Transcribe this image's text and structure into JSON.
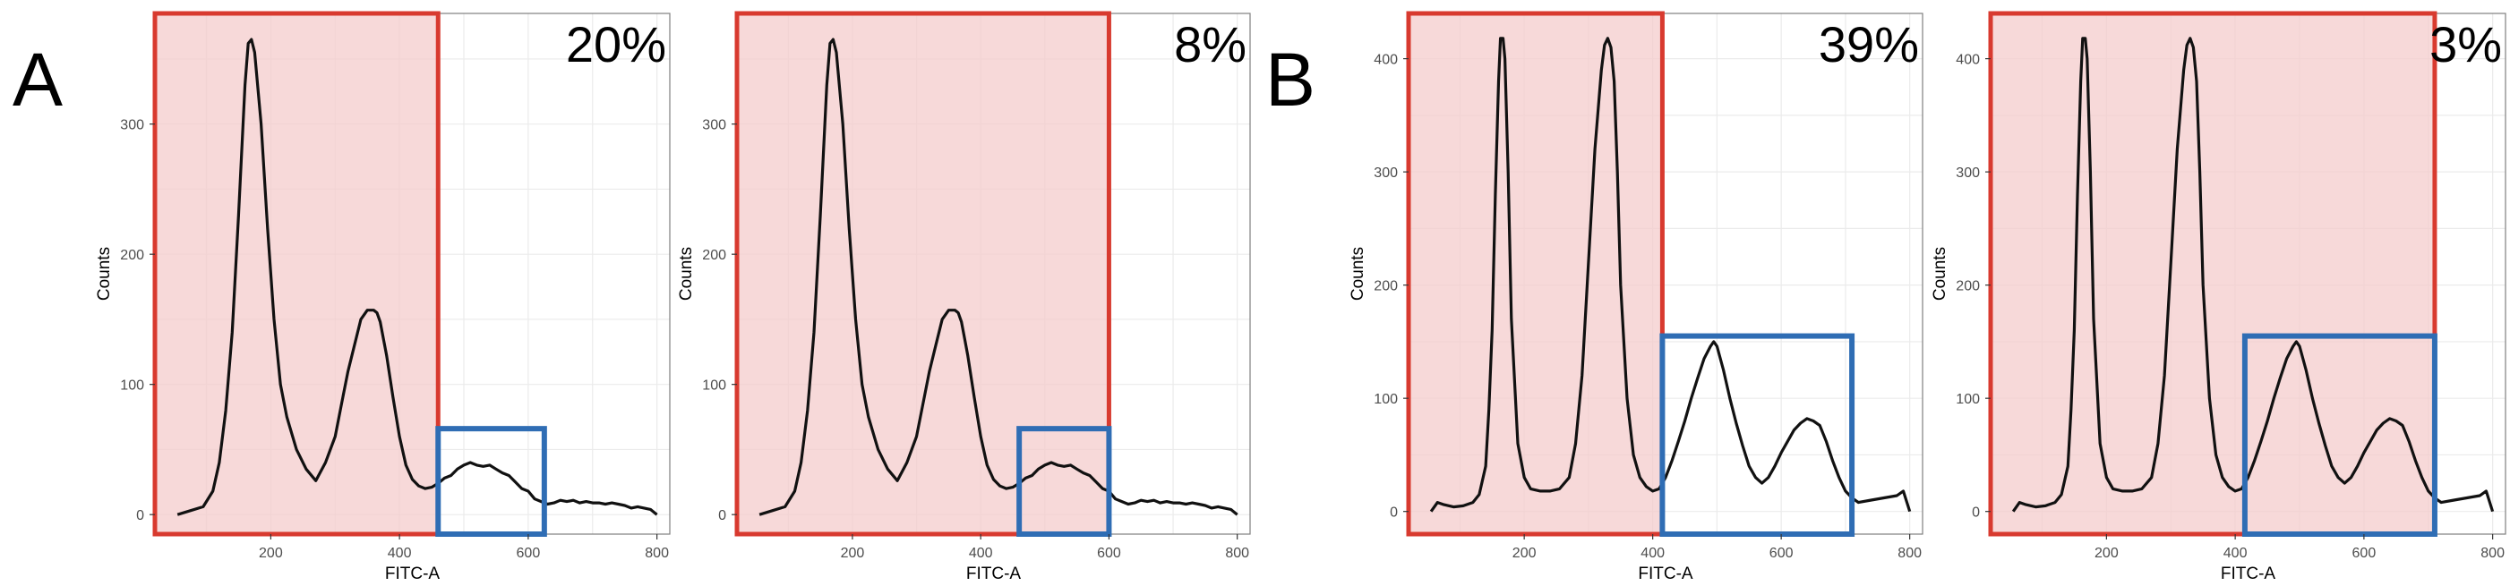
{
  "panel_labels": [
    "A",
    "B"
  ],
  "chart_data": [
    {
      "type": "line",
      "panel": "A",
      "xlabel": "FITC-A",
      "ylabel": "Counts",
      "xlim": [
        20,
        820
      ],
      "ylim": [
        -15,
        385
      ],
      "xticks": [
        200,
        400,
        600,
        800
      ],
      "yticks": [
        0,
        100,
        200,
        300
      ],
      "grid": true,
      "annotation": "20%",
      "x": [
        55,
        75,
        95,
        110,
        120,
        130,
        140,
        150,
        160,
        165,
        170,
        175,
        185,
        195,
        205,
        215,
        225,
        240,
        255,
        270,
        285,
        300,
        310,
        320,
        330,
        340,
        350,
        355,
        360,
        365,
        370,
        375,
        380,
        390,
        400,
        410,
        420,
        430,
        440,
        450,
        460,
        470,
        480,
        490,
        500,
        510,
        520,
        530,
        540,
        550,
        560,
        570,
        580,
        590,
        600,
        610,
        620,
        630,
        640,
        650,
        660,
        670,
        680,
        690,
        700,
        710,
        720,
        730,
        740,
        750,
        760,
        770,
        780,
        790,
        800
      ],
      "y": [
        0,
        3,
        6,
        18,
        40,
        80,
        140,
        230,
        330,
        362,
        365,
        355,
        300,
        220,
        150,
        100,
        75,
        50,
        35,
        26,
        40,
        60,
        85,
        110,
        130,
        150,
        157,
        157,
        157,
        155,
        148,
        135,
        122,
        90,
        60,
        38,
        27,
        22,
        20,
        21,
        24,
        28,
        30,
        35,
        38,
        40,
        38,
        37,
        38,
        35,
        32,
        30,
        25,
        20,
        18,
        12,
        10,
        8,
        9,
        11,
        10,
        11,
        9,
        10,
        9,
        9,
        8,
        9,
        8,
        7,
        5,
        6,
        5,
        4,
        0
      ],
      "gates": [
        {
          "color": "red",
          "x": [
            20,
            460
          ],
          "y": [
            -15,
            385
          ]
        },
        {
          "color": "blue",
          "x": [
            460,
            625
          ],
          "y": [
            -15,
            66
          ]
        }
      ]
    },
    {
      "type": "line",
      "panel": "A",
      "xlabel": "FITC-A",
      "ylabel": "Counts",
      "xlim": [
        20,
        820
      ],
      "ylim": [
        -15,
        385
      ],
      "xticks": [
        200,
        400,
        600,
        800
      ],
      "yticks": [
        0,
        100,
        200,
        300
      ],
      "grid": true,
      "annotation": "8%",
      "x": [
        55,
        75,
        95,
        110,
        120,
        130,
        140,
        150,
        160,
        165,
        170,
        175,
        185,
        195,
        205,
        215,
        225,
        240,
        255,
        270,
        285,
        300,
        310,
        320,
        330,
        340,
        350,
        355,
        360,
        365,
        370,
        375,
        380,
        390,
        400,
        410,
        420,
        430,
        440,
        450,
        460,
        470,
        480,
        490,
        500,
        510,
        520,
        530,
        540,
        550,
        560,
        570,
        580,
        590,
        600,
        610,
        620,
        630,
        640,
        650,
        660,
        670,
        680,
        690,
        700,
        710,
        720,
        730,
        740,
        750,
        760,
        770,
        780,
        790,
        800
      ],
      "y": [
        0,
        3,
        6,
        18,
        40,
        80,
        140,
        230,
        330,
        362,
        365,
        355,
        300,
        220,
        150,
        100,
        75,
        50,
        35,
        26,
        40,
        60,
        85,
        110,
        130,
        150,
        157,
        157,
        157,
        155,
        148,
        135,
        122,
        90,
        60,
        38,
        27,
        22,
        20,
        21,
        24,
        28,
        30,
        35,
        38,
        40,
        38,
        37,
        38,
        35,
        32,
        30,
        25,
        20,
        18,
        12,
        10,
        8,
        9,
        11,
        10,
        11,
        9,
        10,
        9,
        9,
        8,
        9,
        8,
        7,
        5,
        6,
        5,
        4,
        0
      ],
      "gates": [
        {
          "color": "red",
          "x": [
            20,
            600
          ],
          "y": [
            -15,
            385
          ]
        },
        {
          "color": "blue",
          "x": [
            460,
            600
          ],
          "y": [
            -15,
            66
          ]
        }
      ]
    },
    {
      "type": "line",
      "panel": "B",
      "xlabel": "FITC-A",
      "ylabel": "Counts",
      "xlim": [
        20,
        820
      ],
      "ylim": [
        -20,
        440
      ],
      "xticks": [
        200,
        400,
        600,
        800
      ],
      "yticks": [
        0,
        100,
        200,
        300,
        400
      ],
      "grid": true,
      "annotation": "39%",
      "x": [
        55,
        65,
        75,
        90,
        105,
        120,
        130,
        140,
        145,
        150,
        155,
        160,
        163,
        167,
        170,
        175,
        180,
        190,
        200,
        210,
        225,
        240,
        255,
        270,
        280,
        290,
        300,
        310,
        320,
        325,
        330,
        335,
        340,
        345,
        350,
        360,
        370,
        380,
        390,
        400,
        410,
        420,
        430,
        440,
        450,
        460,
        470,
        480,
        490,
        495,
        500,
        510,
        520,
        530,
        540,
        550,
        560,
        570,
        580,
        590,
        600,
        610,
        620,
        630,
        640,
        650,
        660,
        670,
        680,
        690,
        700,
        710,
        720,
        740,
        760,
        780,
        790,
        800
      ],
      "y": [
        0,
        8,
        6,
        4,
        5,
        8,
        15,
        40,
        90,
        160,
        280,
        380,
        418,
        418,
        400,
        300,
        170,
        60,
        30,
        20,
        18,
        18,
        20,
        30,
        60,
        120,
        220,
        320,
        390,
        412,
        418,
        410,
        380,
        300,
        200,
        100,
        50,
        30,
        22,
        18,
        20,
        30,
        45,
        62,
        80,
        100,
        118,
        135,
        146,
        150,
        146,
        125,
        100,
        78,
        58,
        40,
        30,
        25,
        30,
        40,
        52,
        62,
        72,
        78,
        82,
        80,
        76,
        62,
        45,
        30,
        18,
        12,
        8,
        10,
        12,
        14,
        18,
        0
      ],
      "gates": [
        {
          "color": "red",
          "x": [
            20,
            415
          ],
          "y": [
            -20,
            440
          ]
        },
        {
          "color": "blue",
          "x": [
            415,
            710
          ],
          "y": [
            -20,
            155
          ]
        }
      ]
    },
    {
      "type": "line",
      "panel": "B",
      "xlabel": "FITC-A",
      "ylabel": "Counts",
      "xlim": [
        20,
        820
      ],
      "ylim": [
        -20,
        440
      ],
      "xticks": [
        200,
        400,
        600,
        800
      ],
      "yticks": [
        0,
        100,
        200,
        300,
        400
      ],
      "grid": true,
      "annotation": "3%",
      "x": [
        55,
        65,
        75,
        90,
        105,
        120,
        130,
        140,
        145,
        150,
        155,
        160,
        163,
        167,
        170,
        175,
        180,
        190,
        200,
        210,
        225,
        240,
        255,
        270,
        280,
        290,
        300,
        310,
        320,
        325,
        330,
        335,
        340,
        345,
        350,
        360,
        370,
        380,
        390,
        400,
        410,
        420,
        430,
        440,
        450,
        460,
        470,
        480,
        490,
        495,
        500,
        510,
        520,
        530,
        540,
        550,
        560,
        570,
        580,
        590,
        600,
        610,
        620,
        630,
        640,
        650,
        660,
        670,
        680,
        690,
        700,
        710,
        720,
        740,
        760,
        780,
        790,
        800
      ],
      "y": [
        0,
        8,
        6,
        4,
        5,
        8,
        15,
        40,
        90,
        160,
        280,
        380,
        418,
        418,
        400,
        300,
        170,
        60,
        30,
        20,
        18,
        18,
        20,
        30,
        60,
        120,
        220,
        320,
        390,
        412,
        418,
        410,
        380,
        300,
        200,
        100,
        50,
        30,
        22,
        18,
        20,
        30,
        45,
        62,
        80,
        100,
        118,
        135,
        146,
        150,
        146,
        125,
        100,
        78,
        58,
        40,
        30,
        25,
        30,
        40,
        52,
        62,
        72,
        78,
        82,
        80,
        76,
        62,
        45,
        30,
        18,
        12,
        8,
        10,
        12,
        14,
        18,
        0
      ],
      "gates": [
        {
          "color": "red",
          "x": [
            20,
            710
          ],
          "y": [
            -20,
            440
          ]
        },
        {
          "color": "blue",
          "x": [
            415,
            710
          ],
          "y": [
            -20,
            155
          ]
        }
      ]
    }
  ],
  "colors": {
    "line": "#111111",
    "red_gate_stroke": "#d83a2f",
    "red_gate_fill": "#f4cccc",
    "blue_gate_stroke": "#2f6db4",
    "grid": "#ebebeb",
    "frame": "#7f7f7f"
  }
}
